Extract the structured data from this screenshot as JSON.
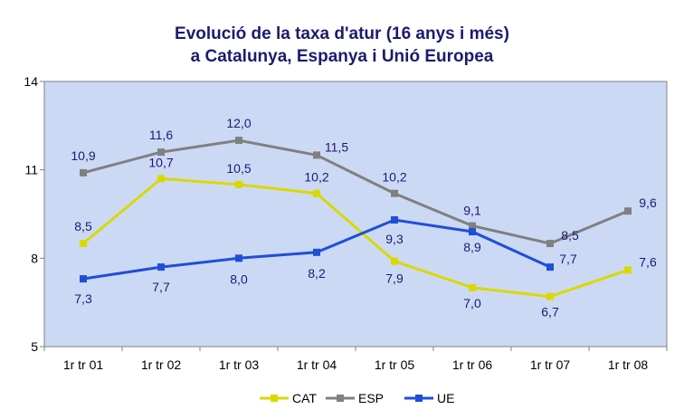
{
  "chart_data": {
    "type": "line",
    "title": "Evolució de la taxa d'atur (16 anys i més)",
    "subtitle": "a Catalunya, Espanya i Unió Europea",
    "categories": [
      "1r tr 01",
      "1r tr 02",
      "1r tr 03",
      "1r tr 04",
      "1r tr 05",
      "1r tr 06",
      "1r tr 07",
      "1r tr 08"
    ],
    "ylim": [
      5,
      14
    ],
    "yticks": [
      5,
      8,
      11,
      14
    ],
    "grid": false,
    "legend": "bottom",
    "series": [
      {
        "name": "CAT",
        "color": "#d9d900",
        "values": [
          8.5,
          10.7,
          10.5,
          10.2,
          7.9,
          7.0,
          6.7,
          7.6
        ],
        "labels": [
          "8,5",
          "10,7",
          "10,5",
          "10,2",
          "7,9",
          "7,0",
          "6,7",
          "7,6"
        ]
      },
      {
        "name": "ESP",
        "color": "#808080",
        "values": [
          10.9,
          11.6,
          12.0,
          11.5,
          10.2,
          9.1,
          8.5,
          9.6
        ],
        "labels": [
          "10,9",
          "11,6",
          "12,0",
          "11,5",
          "10,2",
          "9,1",
          "8,5",
          "9,6"
        ]
      },
      {
        "name": "UE",
        "color": "#1f4ed8",
        "values": [
          7.3,
          7.7,
          8.0,
          8.2,
          9.3,
          8.9,
          7.7,
          null
        ],
        "labels": [
          "7,3",
          "7,7",
          "8,0",
          "8,2",
          "9,3",
          "8,9",
          "7,7",
          ""
        ]
      }
    ]
  }
}
